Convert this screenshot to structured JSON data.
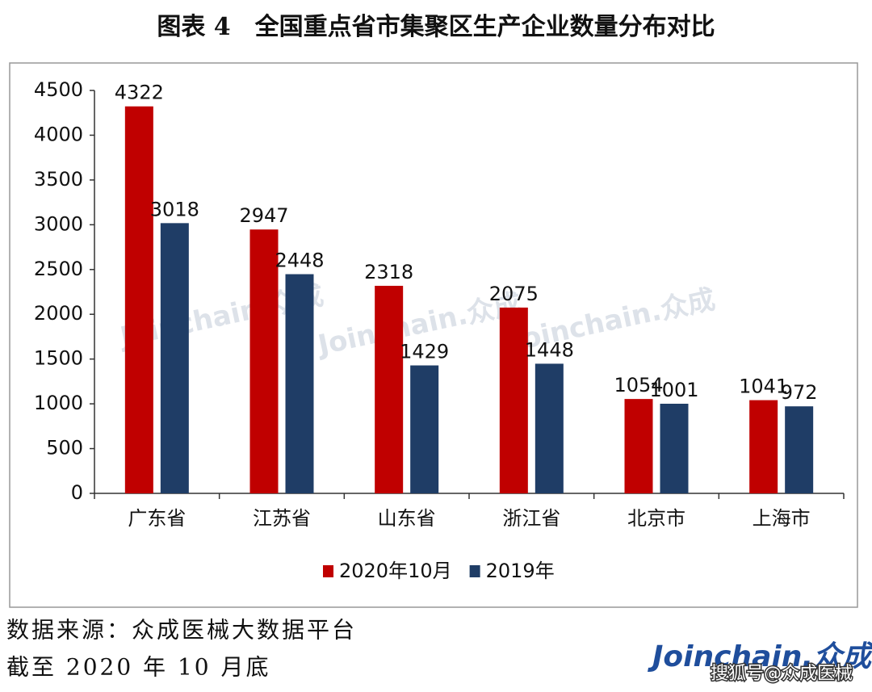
{
  "chart_data": {
    "type": "bar",
    "title": "图表 4　全国重点省市集聚区生产企业数量分布对比",
    "categories": [
      "广东省",
      "江苏省",
      "山东省",
      "浙江省",
      "北京市",
      "上海市"
    ],
    "series": [
      {
        "name": "2020年10月",
        "color": "#c00000",
        "values": [
          4322,
          2947,
          2318,
          2075,
          1054,
          1041
        ]
      },
      {
        "name": "2019年",
        "color": "#1f3d66",
        "values": [
          3018,
          2448,
          1429,
          1448,
          1001,
          972
        ]
      }
    ],
    "ylim": [
      0,
      4500
    ],
    "yticks": [
      0,
      500,
      1000,
      1500,
      2000,
      2500,
      3000,
      3500,
      4000,
      4500
    ],
    "grid": false,
    "legend": "bottom",
    "watermark": "Joinchain.众成"
  },
  "source": "数据来源：众成医械大数据平台",
  "note": "截至 2020 年 10 月底",
  "logo": "Joinchain.众成",
  "platform_tag": "搜狐号@众成医械"
}
